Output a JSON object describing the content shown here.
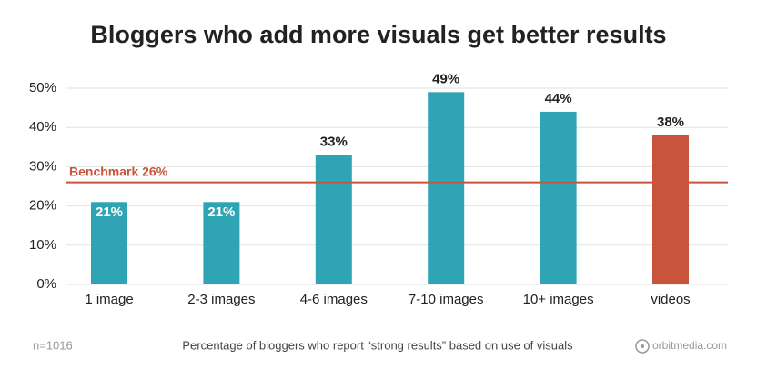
{
  "chart_data": {
    "type": "bar",
    "title": "Bloggers who add more visuals get better results",
    "categories": [
      "1 image",
      "2-3 images",
      "4-6 images",
      "7-10 images",
      "10+ images",
      "videos"
    ],
    "values": [
      21,
      21,
      33,
      49,
      44,
      38
    ],
    "value_labels": [
      "21%",
      "21%",
      "33%",
      "49%",
      "44%",
      "38%"
    ],
    "colors": [
      "#2fa4b4",
      "#2fa4b4",
      "#2fa4b4",
      "#2fa4b4",
      "#2fa4b4",
      "#c9543c"
    ],
    "ylim": [
      0,
      50
    ],
    "yticks": [
      {
        "value": 0,
        "label": "0%"
      },
      {
        "value": 10,
        "label": "10%"
      },
      {
        "value": 20,
        "label": "20%"
      },
      {
        "value": 30,
        "label": "30%"
      },
      {
        "value": 40,
        "label": "40%"
      },
      {
        "value": 50,
        "label": "50%"
      }
    ],
    "grid": true,
    "benchmark": {
      "value": 26,
      "label": "Benchmark 26%",
      "color": "#c9543c"
    },
    "sample_note": "n=1016",
    "caption": "Percentage of bloggers who report “strong results” based on use of visuals",
    "source": "orbitmedia.com"
  }
}
